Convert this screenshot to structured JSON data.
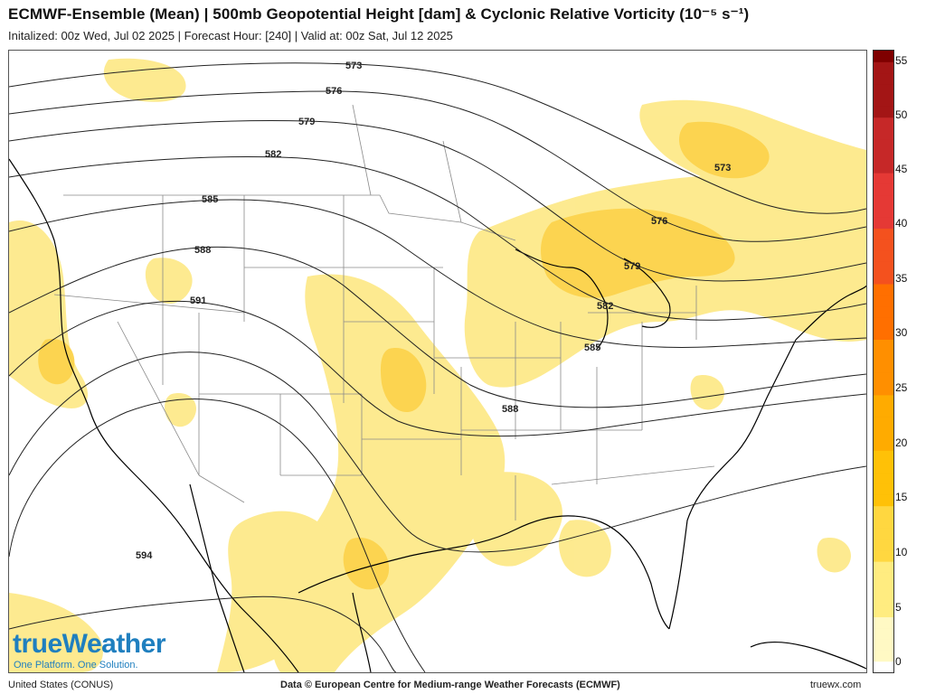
{
  "header": {
    "title": "ECMWF-Ensemble (Mean) | 500mb Geopotential Height [dam] & Cyclonic Relative Vorticity (10⁻⁵ s⁻¹)",
    "subtitle": "Initalized: 00z Wed, Jul 02 2025  |  Forecast Hour: [240]  |  Valid at: 00z Sat, Jul 12 2025"
  },
  "map": {
    "region": "United States (CONUS)",
    "contour_labels": [
      "573",
      "576",
      "579",
      "582",
      "585",
      "588",
      "591",
      "594",
      "573",
      "576",
      "579",
      "582",
      "585",
      "588"
    ]
  },
  "colorbar": {
    "ticks": [
      "0",
      "5",
      "10",
      "15",
      "20",
      "25",
      "30",
      "35",
      "40",
      "45",
      "50",
      "55"
    ],
    "colors": [
      "#fff9c4",
      "#ffec80",
      "#ffd740",
      "#ffc107",
      "#ffab00",
      "#ff8f00",
      "#ff6f00",
      "#f4511e",
      "#e53935",
      "#c62828",
      "#a31515",
      "#7f0000"
    ]
  },
  "footer": {
    "region_label": "United States (CONUS)",
    "credit": "Data © European Centre for Medium-range Weather Forecasts (ECMWF)",
    "site": "truewx.com"
  },
  "logo": {
    "name": "trueWeather",
    "tagline": "One Platform. One Solution."
  }
}
